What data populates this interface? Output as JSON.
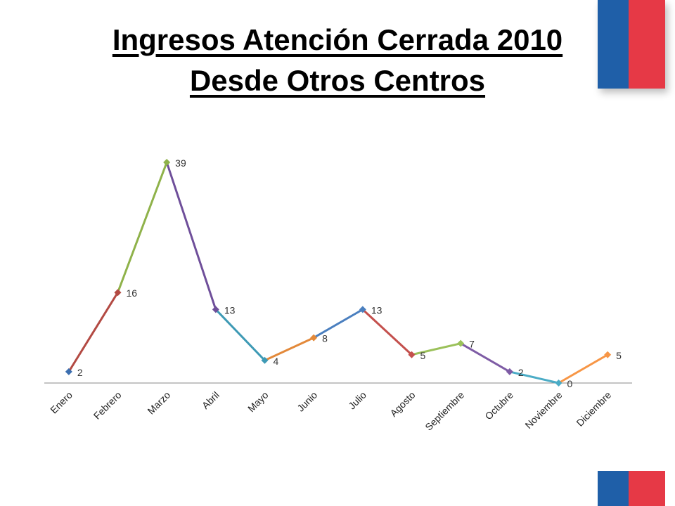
{
  "slide": {
    "title_line1": "Ingresos Atención Cerrada 2010",
    "title_line2": "Desde Otros Centros"
  },
  "colors": {
    "flag_blue": "#1f5fa8",
    "flag_red": "#e63946",
    "axis": "#888888"
  },
  "chart_data": {
    "type": "line",
    "categories": [
      "Enero",
      "Febrero",
      "Marzo",
      "Abril",
      "Mayo",
      "Junio",
      "Julio",
      "Agosto",
      "Septiembre",
      "Octubre",
      "Noviembre",
      "Diciembre"
    ],
    "values": [
      2,
      16,
      39,
      13,
      4,
      8,
      13,
      5,
      7,
      2,
      0,
      5
    ],
    "title": "",
    "xlabel": "",
    "ylabel": "",
    "ylim": [
      0,
      40
    ],
    "grid": false,
    "legend": "none",
    "segment_colors": [
      "#b34a43",
      "#8fb24a",
      "#6f4f9a",
      "#3e9ab5",
      "#e3893a",
      "#4a7fbf",
      "#c4504d",
      "#9bc15a",
      "#7e5ca5",
      "#4bacc6",
      "#f79646"
    ],
    "marker_colors": [
      "#3c6fb0",
      "#b34a43",
      "#8fb24a",
      "#6f4f9a",
      "#3e9ab5",
      "#e3893a",
      "#4a7fbf",
      "#c4504d",
      "#9bc15a",
      "#7e5ca5",
      "#4bacc6",
      "#f79646"
    ]
  }
}
